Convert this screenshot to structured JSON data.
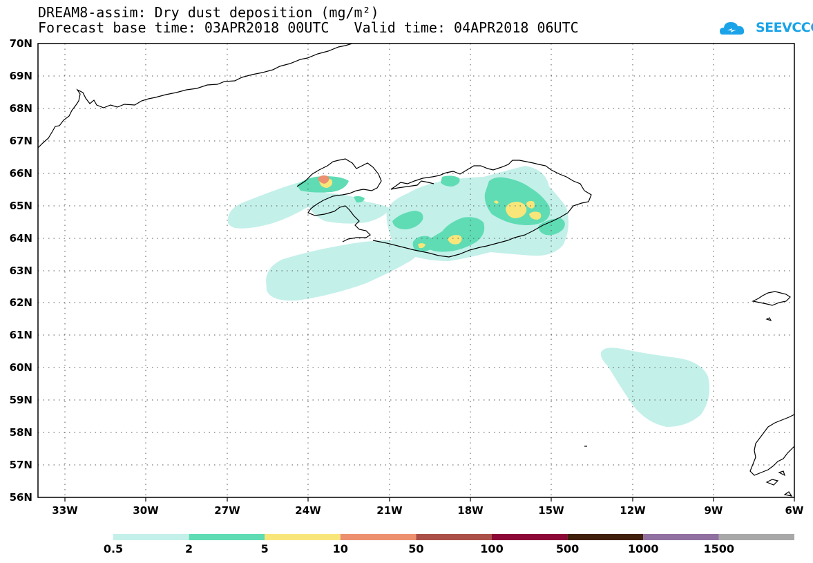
{
  "header": {
    "title_line1": "DREAM8-assim: Dry dust deposition (mg/m²)",
    "title_line2": "Forecast base time: 03APR2018 00UTC   Valid time: 04APR2018 06UTC",
    "logo_text": "SEEVCCC",
    "logo_icon": "cloud-icon",
    "logo_color": "#1aa3e8"
  },
  "map": {
    "projection": "lat-lon",
    "lon_range": [
      "35W",
      "6W"
    ],
    "lat_range": [
      "56N",
      "70N"
    ],
    "grid": "dotted",
    "lat_labels": [
      "70N",
      "69N",
      "68N",
      "67N",
      "66N",
      "65N",
      "64N",
      "63N",
      "62N",
      "61N",
      "60N",
      "59N",
      "58N",
      "57N",
      "56N"
    ],
    "lon_labels": [
      "33W",
      "30W",
      "27W",
      "24W",
      "21W",
      "18W",
      "15W",
      "12W",
      "9W",
      "6W"
    ],
    "regions_drawn": [
      "Greenland coast",
      "Iceland",
      "Faroe Islands",
      "Scotland"
    ]
  },
  "colorbar": {
    "labels": [
      "0.5",
      "2",
      "5",
      "10",
      "50",
      "100",
      "500",
      "1000",
      "1500"
    ],
    "colors": [
      "#c4f0ea",
      "#5fdcb4",
      "#f8e67a",
      "#ec9070",
      "#aa5048",
      "#8c0836",
      "#40200c",
      "#9070a0",
      "#a8a8a8"
    ]
  }
}
